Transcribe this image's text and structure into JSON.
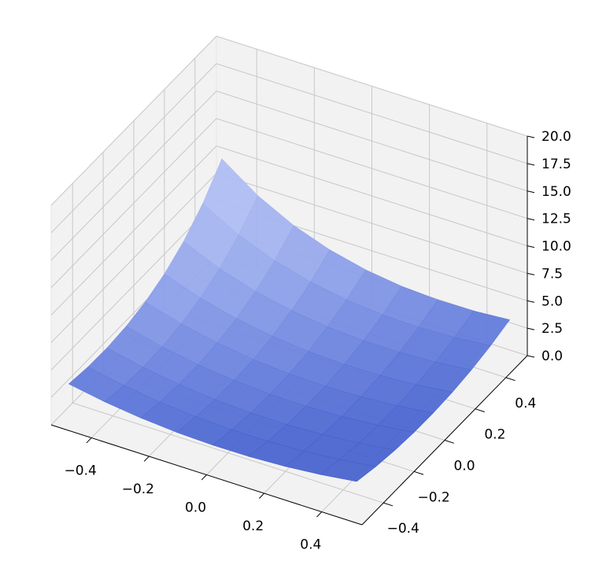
{
  "chart_data": {
    "type": "surface",
    "x": [
      -0.5,
      -0.375,
      -0.25,
      -0.125,
      0,
      0.125,
      0.25,
      0.375,
      0.5
    ],
    "y": [
      -0.5,
      -0.375,
      -0.25,
      -0.125,
      0,
      0.125,
      0.25,
      0.375,
      0.5
    ],
    "z": [
      [
        3.5,
        2.92,
        2.51,
        2.25,
        2.14,
        2.16,
        2.32,
        2.61,
        3.04
      ],
      [
        3.25,
        2.63,
        2.17,
        1.89,
        1.75,
        1.76,
        1.91,
        2.2,
        2.61
      ],
      [
        3.21,
        2.5,
        2.0,
        1.67,
        1.51,
        1.5,
        1.64,
        1.91,
        2.32
      ],
      [
        3.39,
        2.58,
        2.0,
        1.63,
        1.42,
        1.39,
        1.5,
        1.76,
        2.16
      ],
      [
        3.83,
        2.89,
        2.21,
        1.75,
        1.5,
        1.42,
        1.51,
        1.75,
        2.14
      ],
      [
        4.6,
        3.46,
        2.64,
        2.08,
        1.75,
        1.63,
        1.67,
        1.89,
        2.25
      ],
      [
        5.76,
        4.35,
        3.33,
        2.64,
        2.21,
        2.0,
        2.0,
        2.17,
        2.51
      ],
      [
        7.43,
        5.64,
        4.35,
        3.46,
        2.89,
        2.58,
        2.5,
        2.63,
        2.92
      ],
      [
        9.73,
        7.43,
        5.76,
        4.6,
        3.83,
        3.39,
        3.21,
        3.25,
        3.5
      ]
    ],
    "color": "#4a68dc",
    "pane_color": "#f2f2f2",
    "grid": true,
    "xlim": [
      -0.54,
      0.54
    ],
    "ylim": [
      -0.54,
      0.54
    ],
    "zlim": [
      0,
      20
    ],
    "xticks": [
      {
        "value": -0.4,
        "label": "−0.4"
      },
      {
        "value": -0.2,
        "label": "−0.2"
      },
      {
        "value": 0,
        "label": "0.0"
      },
      0.2,
      0.4
    ],
    "yticks": [
      {
        "value": -0.4,
        "label": "−0.4"
      },
      {
        "value": -0.2,
        "label": "−0.2"
      },
      {
        "value": 0,
        "label": "0.0"
      },
      0.2,
      0.4
    ],
    "zticks": [
      {
        "value": 0,
        "label": "0.0"
      },
      2.5,
      {
        "value": 5,
        "label": "5.0"
      },
      7.5,
      {
        "value": 10,
        "label": "10.0"
      },
      12.5,
      {
        "value": 15,
        "label": "15.0"
      },
      17.5,
      {
        "value": 20,
        "label": "20.0"
      }
    ]
  }
}
